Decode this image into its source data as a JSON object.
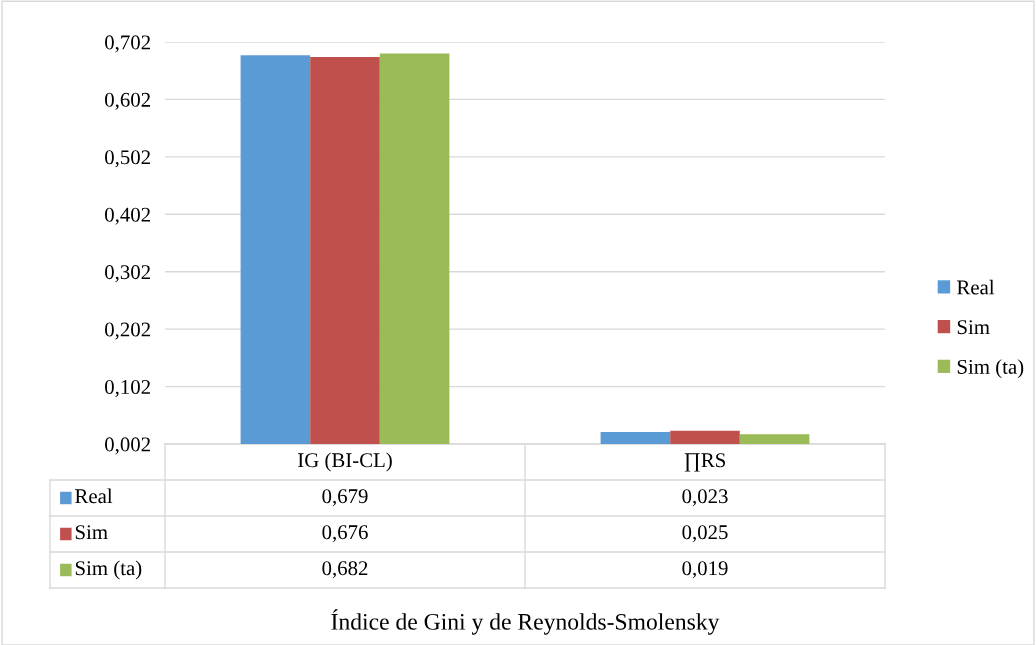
{
  "chart_data": {
    "type": "bar",
    "title": "Índice de Gini y de Reynolds-Smolensky",
    "categories": [
      "IG (BI-CL)",
      "∏RS"
    ],
    "series": [
      {
        "name": "Real",
        "color": "#5b9bd5",
        "values": [
          0.679,
          0.023
        ],
        "value_labels": [
          "0,679",
          "0,023"
        ]
      },
      {
        "name": "Sim",
        "color": "#c0504d",
        "values": [
          0.676,
          0.025
        ],
        "value_labels": [
          "0,676",
          "0,025"
        ]
      },
      {
        "name": "Sim (ta)",
        "color": "#9bbb59",
        "values": [
          0.682,
          0.019
        ],
        "value_labels": [
          "0,682",
          "0,019"
        ]
      }
    ],
    "ylim": [
      0.002,
      0.702
    ],
    "yticks": [
      {
        "value": 0.002,
        "label": "0,002"
      },
      {
        "value": 0.102,
        "label": "0,102"
      },
      {
        "value": 0.202,
        "label": "0,202"
      },
      {
        "value": 0.302,
        "label": "0,302"
      },
      {
        "value": 0.402,
        "label": "0,402"
      },
      {
        "value": 0.502,
        "label": "0,502"
      },
      {
        "value": 0.602,
        "label": "0,602"
      },
      {
        "value": 0.702,
        "label": "0,702"
      }
    ],
    "grid": "y",
    "legend": "right"
  }
}
